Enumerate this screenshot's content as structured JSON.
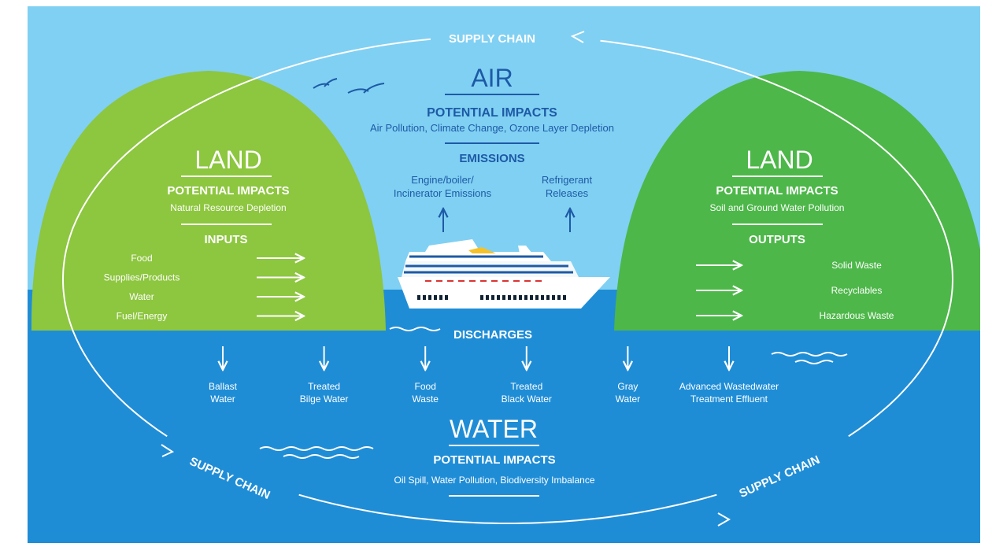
{
  "supply_chain": [
    "SUPPLY CHAIN",
    "SUPPLY CHAIN",
    "SUPPLY CHAIN"
  ],
  "air": {
    "title": "AIR",
    "impacts_heading": "POTENTIAL IMPACTS",
    "impacts": "Air Pollution, Climate Change, Ozone Layer Depletion",
    "emissions_heading": "EMISSIONS",
    "emissions": [
      [
        "Engine/boiler/",
        "Incinerator Emissions"
      ],
      [
        "Refrigerant",
        "Releases"
      ]
    ]
  },
  "land_left": {
    "title": "LAND",
    "impacts_heading": "POTENTIAL IMPACTS",
    "impacts": "Natural Resource Depletion",
    "inputs_heading": "INPUTS",
    "inputs": [
      "Food",
      "Supplies/Products",
      "Water",
      "Fuel/Energy"
    ]
  },
  "land_right": {
    "title": "LAND",
    "impacts_heading": "POTENTIAL IMPACTS",
    "impacts": "Soil and Ground Water Pollution",
    "outputs_heading": "OUTPUTS",
    "outputs": [
      "Solid Waste",
      "Recyclables",
      "Hazardous Waste"
    ]
  },
  "discharges": {
    "heading": "DISCHARGES",
    "items": [
      [
        "Ballast",
        "Water"
      ],
      [
        "Treated",
        "Bilge Water"
      ],
      [
        "Food",
        "Waste"
      ],
      [
        "Treated",
        "Black Water"
      ],
      [
        "Gray",
        "Water"
      ],
      [
        "Advanced Wastedwater",
        "Treatment Effluent"
      ]
    ]
  },
  "water": {
    "title": "WATER",
    "impacts_heading": "POTENTIAL IMPACTS",
    "impacts": "Oil Spill, Water Pollution, Biodiversity Imbalance"
  }
}
